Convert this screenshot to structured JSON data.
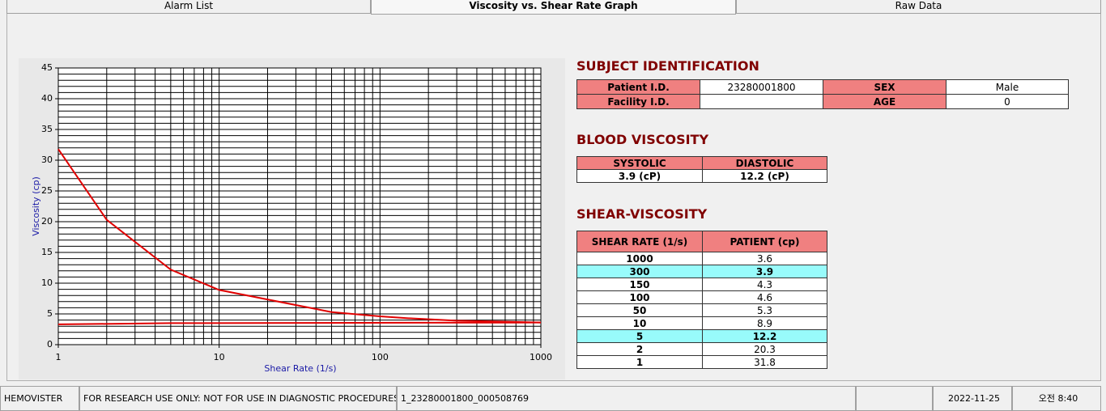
{
  "tabs": [
    "Alarm List",
    "Viscosity vs. Shear Rate Graph",
    "Raw Data"
  ],
  "chart_data": {
    "type": "line",
    "x_label": "Shear Rate (1/s)",
    "y_label": "Viscosity (cp)",
    "xscale": "log",
    "xlim": [
      1,
      1000
    ],
    "xticks": [
      1,
      10,
      100,
      1000
    ],
    "ylim": [
      0,
      45
    ],
    "yticks": [
      0,
      5,
      10,
      15,
      20,
      25,
      30,
      35,
      40,
      45
    ],
    "grid": true,
    "minor_grid": true,
    "series": [
      {
        "color": "#e00000",
        "x": [
          1,
          2,
          5,
          10,
          50,
          100,
          150,
          300,
          1000
        ],
        "values": [
          31.8,
          20.3,
          12.2,
          8.9,
          5.3,
          4.6,
          4.3,
          3.9,
          3.6
        ]
      },
      {
        "color": "#e00000",
        "x": [
          1,
          5,
          1000
        ],
        "values": [
          3.3,
          3.5,
          3.6
        ]
      }
    ]
  },
  "subject": {
    "title": "SUBJECT IDENTIFICATION",
    "rows": [
      [
        "Patient I.D.",
        "23280001800",
        "SEX",
        "Male"
      ],
      [
        "Facility I.D.",
        null,
        "AGE",
        "0"
      ]
    ]
  },
  "blood": {
    "title": "BLOOD VISCOSITY",
    "headers": [
      "SYSTOLIC",
      "DIASTOLIC"
    ],
    "values": [
      "3.9 (cP)",
      "12.2 (cP)"
    ]
  },
  "shear": {
    "title": "SHEAR-VISCOSITY",
    "headers": [
      "SHEAR RATE (1/s)",
      "PATIENT (cp)"
    ],
    "rows": [
      {
        "rate": 1000,
        "patient": 3.6,
        "highlighted": false
      },
      {
        "rate": 300,
        "patient": 3.9,
        "highlighted": true
      },
      {
        "rate": 150,
        "patient": 4.3,
        "highlighted": false
      },
      {
        "rate": 100,
        "patient": 4.6,
        "highlighted": false
      },
      {
        "rate": 50,
        "patient": 5.3,
        "highlighted": false
      },
      {
        "rate": 10,
        "patient": 8.9,
        "highlighted": false
      },
      {
        "rate": 5,
        "patient": 12.2,
        "highlighted": true
      },
      {
        "rate": 2,
        "patient": 20.3,
        "highlighted": false
      },
      {
        "rate": 1,
        "patient": 31.8,
        "highlighted": false
      }
    ]
  },
  "status": [
    "HEMOVISTER",
    "FOR RESEARCH USE ONLY: NOT FOR USE IN DIAGNOSTIC PROCEDURES",
    "1_23280001800_000508769",
    null,
    "2022-11-25",
    "오전 8:40"
  ]
}
